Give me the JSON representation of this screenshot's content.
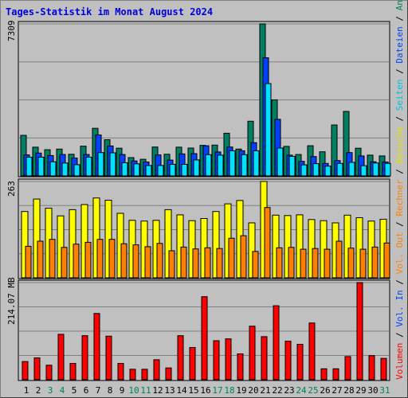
{
  "title": "Tages-Statistik im Monat August 2024",
  "chart_data": {
    "type": "bar",
    "categories": [
      "1",
      "2",
      "3",
      "4",
      "5",
      "6",
      "7",
      "8",
      "9",
      "10",
      "11",
      "12",
      "13",
      "14",
      "15",
      "16",
      "17",
      "18",
      "19",
      "20",
      "21",
      "22",
      "23",
      "24",
      "25",
      "26",
      "27",
      "28",
      "29",
      "30",
      "31"
    ],
    "weekend_days": [
      "3",
      "4",
      "10",
      "11",
      "17",
      "18",
      "24",
      "25",
      "31"
    ],
    "colors": {
      "anfragen": "#008060",
      "dateien": "#0040ff",
      "seiten": "#00e0ff",
      "besuche": "#ffff00",
      "rechner": "#ff8000",
      "volumen": "#ff0000",
      "weekend_label": "#00805c",
      "weekday_label": "#000000",
      "grid": "#808080",
      "panel_bg": "#c0c0c0"
    },
    "top_panel": {
      "ymax_label": "7309",
      "ymax": 7309,
      "series": [
        {
          "name": "Anfragen",
          "values": [
            1950,
            1380,
            1260,
            1290,
            1040,
            1430,
            2290,
            1740,
            1330,
            880,
            800,
            1390,
            1040,
            1380,
            1340,
            1470,
            1480,
            2050,
            1290,
            2630,
            7309,
            3660,
            1420,
            1030,
            1450,
            1160,
            2450,
            3100,
            1330,
            1000,
            960
          ]
        },
        {
          "name": "Dateien",
          "values": [
            1010,
            1100,
            980,
            1030,
            860,
            1030,
            1970,
            1440,
            1030,
            720,
            670,
            1010,
            760,
            1060,
            1070,
            1450,
            1150,
            1390,
            1210,
            1600,
            5680,
            2720,
            1000,
            700,
            930,
            600,
            740,
            1120,
            960,
            680,
            670
          ]
        },
        {
          "name": "Seiten",
          "values": [
            900,
            900,
            680,
            620,
            540,
            900,
            1120,
            1110,
            630,
            580,
            500,
            500,
            560,
            560,
            770,
            1020,
            1000,
            1210,
            1020,
            1210,
            4440,
            1340,
            940,
            530,
            590,
            470,
            600,
            650,
            490,
            620,
            600
          ]
        }
      ]
    },
    "middle_panel": {
      "ymax_label": "263",
      "ymax": 263,
      "series": [
        {
          "name": "Besuche",
          "values": [
            181,
            215,
            190,
            169,
            186,
            200,
            218,
            212,
            176,
            157,
            155,
            157,
            186,
            172,
            156,
            162,
            181,
            202,
            211,
            150,
            263,
            171,
            170,
            172,
            159,
            156,
            150,
            171,
            164,
            155,
            160
          ]
        },
        {
          "name": "Rechner",
          "values": [
            86,
            100,
            105,
            83,
            92,
            97,
            105,
            105,
            93,
            90,
            85,
            94,
            74,
            84,
            79,
            82,
            80,
            108,
            115,
            72,
            192,
            82,
            83,
            78,
            80,
            78,
            100,
            81,
            78,
            84,
            95
          ]
        }
      ]
    },
    "bottom_panel": {
      "ymax_label": "214.07 MB",
      "ymax": 214.07,
      "series": [
        {
          "name": "Volumen",
          "values": [
            40,
            48,
            32,
            100,
            36,
            97,
            146,
            96,
            36,
            23,
            23,
            44,
            26,
            97,
            71,
            183,
            86,
            90,
            57,
            118,
            95,
            163,
            85,
            78,
            125,
            24,
            24,
            51,
            214.07,
            53,
            47
          ]
        }
      ]
    },
    "legend_right": [
      {
        "text": "Anfragen",
        "color": "#008060"
      },
      {
        "text": "Dateien",
        "color": "#0040ff"
      },
      {
        "text": "Seiten",
        "color": "#00c0e0"
      },
      {
        "text": "Besuche",
        "color": "#e0e000"
      },
      {
        "text": "Rechner",
        "color": "#ff8000"
      },
      {
        "text": "Vol. Out",
        "color": "#ff8000"
      },
      {
        "text": "Vol. In",
        "color": "#0040ff"
      },
      {
        "text": "Volumen",
        "color": "#ff0000"
      }
    ],
    "legend_separator": " / "
  }
}
